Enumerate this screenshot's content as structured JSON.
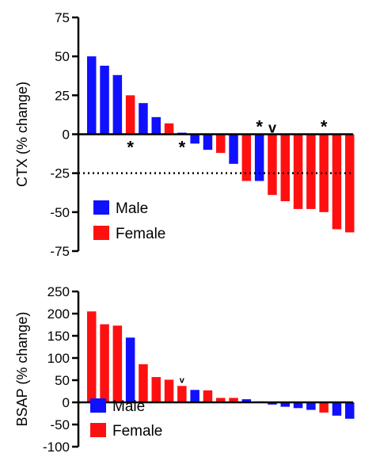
{
  "colors": {
    "male": "#1010ff",
    "female": "#ff1010",
    "axis": "#000000"
  },
  "chart_data": [
    {
      "type": "bar",
      "panel": "top",
      "ylabel": "CTX (% change)",
      "ylim": [
        -75,
        75
      ],
      "yticks": [
        75,
        50,
        25,
        0,
        -25,
        -50,
        -75
      ],
      "reference_line": {
        "value": -25,
        "style": "dotted"
      },
      "grid": false,
      "legend": {
        "placement": "bottom-left",
        "entries": [
          {
            "label": "Male",
            "sex": "male"
          },
          {
            "label": "Female",
            "sex": "female"
          }
        ]
      },
      "bars": [
        {
          "value": 50,
          "sex": "male"
        },
        {
          "value": 44,
          "sex": "male"
        },
        {
          "value": 38,
          "sex": "male"
        },
        {
          "value": 25,
          "sex": "female",
          "marker": "*"
        },
        {
          "value": 20,
          "sex": "male"
        },
        {
          "value": 11,
          "sex": "male"
        },
        {
          "value": 7,
          "sex": "female"
        },
        {
          "value": 1,
          "sex": "male",
          "marker": "*"
        },
        {
          "value": -6,
          "sex": "male"
        },
        {
          "value": -10,
          "sex": "male"
        },
        {
          "value": -12,
          "sex": "female"
        },
        {
          "value": -19,
          "sex": "male"
        },
        {
          "value": -30,
          "sex": "female"
        },
        {
          "value": -30,
          "sex": "male",
          "marker": "*"
        },
        {
          "value": -39,
          "sex": "female",
          "marker": "v"
        },
        {
          "value": -43,
          "sex": "female"
        },
        {
          "value": -48,
          "sex": "female"
        },
        {
          "value": -48,
          "sex": "female"
        },
        {
          "value": -50,
          "sex": "female",
          "marker": "*"
        },
        {
          "value": -61,
          "sex": "female"
        },
        {
          "value": -63,
          "sex": "female"
        }
      ]
    },
    {
      "type": "bar",
      "panel": "bottom",
      "ylabel": "BSAP (% change)",
      "ylim": [
        -100,
        250
      ],
      "yticks": [
        250,
        200,
        150,
        100,
        50,
        0,
        -50,
        -100
      ],
      "grid": false,
      "legend": {
        "placement": "bottom-left",
        "entries": [
          {
            "label": "Male",
            "sex": "male"
          },
          {
            "label": "Female",
            "sex": "female"
          }
        ]
      },
      "bars": [
        {
          "value": 205,
          "sex": "female"
        },
        {
          "value": 176,
          "sex": "female"
        },
        {
          "value": 173,
          "sex": "female"
        },
        {
          "value": 146,
          "sex": "male"
        },
        {
          "value": 86,
          "sex": "female"
        },
        {
          "value": 57,
          "sex": "female"
        },
        {
          "value": 51,
          "sex": "female"
        },
        {
          "value": 37,
          "sex": "female",
          "marker": "v"
        },
        {
          "value": 28,
          "sex": "male"
        },
        {
          "value": 27,
          "sex": "female"
        },
        {
          "value": 10,
          "sex": "female"
        },
        {
          "value": 10,
          "sex": "female"
        },
        {
          "value": 7,
          "sex": "male"
        },
        {
          "value": 2,
          "sex": "male"
        },
        {
          "value": -5,
          "sex": "male"
        },
        {
          "value": -10,
          "sex": "male"
        },
        {
          "value": -13,
          "sex": "male"
        },
        {
          "value": -17,
          "sex": "male"
        },
        {
          "value": -23,
          "sex": "female"
        },
        {
          "value": -30,
          "sex": "male"
        },
        {
          "value": -37,
          "sex": "male"
        }
      ]
    }
  ]
}
